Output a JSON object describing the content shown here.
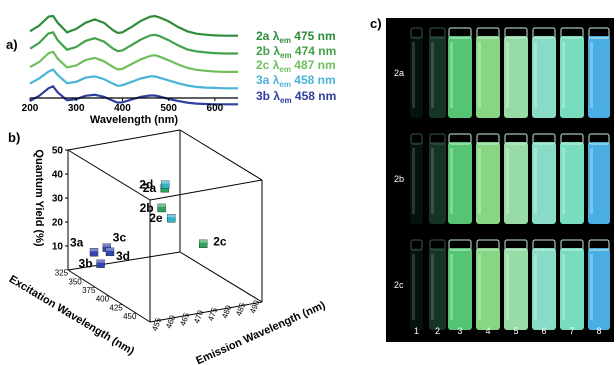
{
  "panels": {
    "a": "a)",
    "b": "b)",
    "c": "c)"
  },
  "chart_data": [
    {
      "type": "line",
      "panel": "a",
      "xlabel": "Wavelength (nm)",
      "ylabel": "",
      "xlim": [
        200,
        650
      ],
      "xticks": [
        200,
        300,
        400,
        500,
        600
      ],
      "y_ticks_shown": false,
      "series": [
        {
          "name": "2a",
          "label": "λ",
          "sub": "em",
          "value": "475 nm",
          "color": "#2e8c3a",
          "x": [
            200,
            220,
            240,
            250,
            260,
            280,
            300,
            320,
            340,
            360,
            380,
            390,
            400,
            420,
            440,
            460,
            470,
            480,
            500,
            520,
            540,
            560,
            580,
            600,
            620,
            650
          ],
          "values": [
            0.55,
            0.72,
            0.98,
            1.0,
            0.8,
            0.52,
            0.62,
            0.8,
            0.9,
            0.8,
            0.58,
            0.5,
            0.52,
            0.68,
            0.86,
            0.98,
            1.0,
            0.96,
            0.84,
            0.68,
            0.55,
            0.48,
            0.45,
            0.43,
            0.42,
            0.42
          ]
        },
        {
          "name": "2b",
          "label": "λ",
          "sub": "em",
          "value": "474 nm",
          "color": "#43a24a",
          "x": [
            200,
            220,
            240,
            250,
            260,
            280,
            300,
            320,
            340,
            360,
            380,
            390,
            400,
            420,
            440,
            460,
            470,
            480,
            500,
            520,
            540,
            560,
            580,
            600,
            620,
            650
          ],
          "values": [
            0.45,
            0.62,
            0.9,
            0.93,
            0.7,
            0.42,
            0.5,
            0.68,
            0.76,
            0.66,
            0.45,
            0.38,
            0.4,
            0.56,
            0.72,
            0.84,
            0.86,
            0.82,
            0.7,
            0.55,
            0.43,
            0.37,
            0.34,
            0.32,
            0.31,
            0.31
          ]
        },
        {
          "name": "2c",
          "label": "λ",
          "sub": "em",
          "value": "487 nm",
          "color": "#6fbf5d",
          "x": [
            200,
            220,
            240,
            250,
            260,
            280,
            300,
            320,
            340,
            360,
            380,
            390,
            400,
            420,
            440,
            460,
            470,
            480,
            500,
            520,
            540,
            560,
            580,
            600,
            620,
            650
          ],
          "values": [
            0.35,
            0.5,
            0.76,
            0.8,
            0.6,
            0.34,
            0.4,
            0.56,
            0.62,
            0.52,
            0.35,
            0.28,
            0.3,
            0.44,
            0.58,
            0.68,
            0.7,
            0.66,
            0.55,
            0.43,
            0.33,
            0.27,
            0.24,
            0.22,
            0.21,
            0.21
          ]
        },
        {
          "name": "3a",
          "label": "λ",
          "sub": "em",
          "value": "458 nm",
          "color": "#4ab3d8",
          "x": [
            200,
            220,
            240,
            250,
            260,
            280,
            300,
            320,
            340,
            360,
            380,
            390,
            400,
            420,
            440,
            460,
            470,
            480,
            500,
            520,
            540,
            560,
            580,
            600,
            620,
            650
          ],
          "values": [
            0.25,
            0.4,
            0.6,
            0.66,
            0.5,
            0.26,
            0.3,
            0.42,
            0.46,
            0.38,
            0.24,
            0.18,
            0.2,
            0.3,
            0.4,
            0.46,
            0.46,
            0.42,
            0.34,
            0.26,
            0.19,
            0.15,
            0.13,
            0.12,
            0.11,
            0.11
          ]
        },
        {
          "name": "3b",
          "label": "λ",
          "sub": "em",
          "value": "458 nm",
          "color": "#2f3f9e",
          "x": [
            200,
            220,
            240,
            250,
            260,
            280,
            300,
            320,
            340,
            360,
            380,
            390,
            400,
            420,
            440,
            460,
            470,
            480,
            500,
            520,
            540,
            560,
            580,
            600,
            620,
            650
          ],
          "values": [
            0.15,
            0.3,
            0.52,
            0.58,
            0.4,
            0.17,
            0.2,
            0.3,
            0.33,
            0.27,
            0.15,
            0.1,
            0.11,
            0.19,
            0.27,
            0.31,
            0.31,
            0.28,
            0.21,
            0.15,
            0.1,
            0.07,
            0.06,
            0.05,
            0.05,
            0.05
          ]
        }
      ]
    },
    {
      "type": "scatter",
      "panel": "b",
      "xlabel": "Emission Wavelength (nm)",
      "ylabel": "Quantum Yield (%)",
      "zlabel": "Excitation Wavelength (nm)",
      "ylim": [
        0,
        50
      ],
      "yticks": [
        10,
        20,
        30,
        40,
        50
      ],
      "xticks": [
        455,
        460,
        465,
        470,
        475,
        480,
        485,
        490
      ],
      "zticks": [
        325,
        350,
        375,
        400,
        425,
        450
      ],
      "points": [
        {
          "label": "2a",
          "emission": 475,
          "excitation": 375,
          "qy": 38,
          "color": "#2ea55a"
        },
        {
          "label": "2b",
          "emission": 474,
          "excitation": 375,
          "qy": 30,
          "color": "#2ea55a"
        },
        {
          "label": "2c",
          "emission": 487,
          "excitation": 375,
          "qy": 12,
          "color": "#2ea55a"
        },
        {
          "label": "2d",
          "emission": 470,
          "excitation": 400,
          "qy": 45,
          "color": "#30b4c8"
        },
        {
          "label": "2e",
          "emission": 477,
          "excitation": 375,
          "qy": 25,
          "color": "#30b4c8"
        },
        {
          "label": "3a",
          "emission": 458,
          "excitation": 350,
          "qy": 11,
          "color": "#3346b0"
        },
        {
          "label": "3b",
          "emission": 458,
          "excitation": 360,
          "qy": 8,
          "color": "#3346b0"
        },
        {
          "label": "3c",
          "emission": 462,
          "excitation": 350,
          "qy": 12,
          "color": "#3346b0"
        },
        {
          "label": "3d",
          "emission": 463,
          "excitation": 350,
          "qy": 10,
          "color": "#3346b0"
        }
      ]
    }
  ],
  "photo": {
    "rows": [
      "2a",
      "2b",
      "2c"
    ],
    "vial_numbers": [
      "1",
      "2",
      "3",
      "4",
      "5",
      "6",
      "7",
      "8"
    ],
    "vial_colors": [
      "#06150d",
      "#18382a",
      "#5ad07a",
      "#8ee28a",
      "#9fe7b0",
      "#8fe7d2",
      "#7ee9c8",
      "#4fb7ef"
    ]
  }
}
